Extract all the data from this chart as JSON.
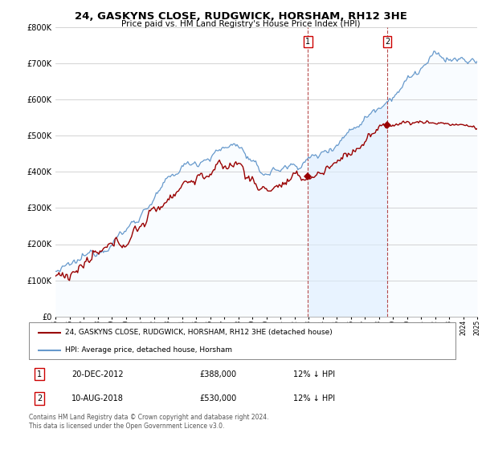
{
  "title": "24, GASKYNS CLOSE, RUDGWICK, HORSHAM, RH12 3HE",
  "subtitle": "Price paid vs. HM Land Registry's House Price Index (HPI)",
  "legend_label_red": "24, GASKYNS CLOSE, RUDGWICK, HORSHAM, RH12 3HE (detached house)",
  "legend_label_blue": "HPI: Average price, detached house, Horsham",
  "footnote": "Contains HM Land Registry data © Crown copyright and database right 2024.\nThis data is licensed under the Open Government Licence v3.0.",
  "sale1_label": "1",
  "sale1_date": "20-DEC-2012",
  "sale1_price": "£388,000",
  "sale1_hpi": "12% ↓ HPI",
  "sale2_label": "2",
  "sale2_date": "10-AUG-2018",
  "sale2_price": "£530,000",
  "sale2_hpi": "12% ↓ HPI",
  "sale1_year": 2012.97,
  "sale1_value": 388000,
  "sale2_year": 2018.61,
  "sale2_value": 530000,
  "ylim": [
    0,
    800000
  ],
  "xlim_start": 1995,
  "xlim_end": 2025,
  "red_color": "#990000",
  "blue_color": "#6699cc",
  "blue_fill_color": "#ddeeff",
  "background_color": "#ffffff",
  "grid_color": "#cccccc",
  "marker_box_color": "#cc0000"
}
